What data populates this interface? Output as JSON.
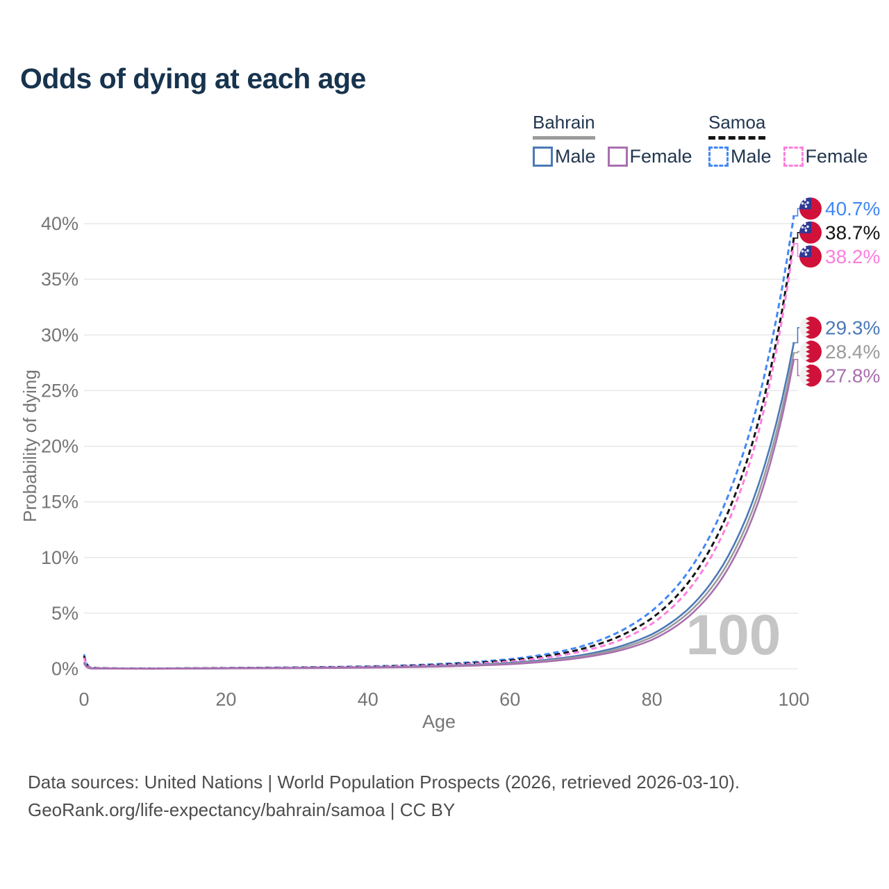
{
  "title": "Odds of dying at each age",
  "legend": {
    "bahrain": {
      "label": "Bahrain",
      "male_label": "Male",
      "female_label": "Female",
      "line_color": "#9b9b9b",
      "male_color": "#4b79b7",
      "female_color": "#a96fae",
      "style": "solid"
    },
    "samoa": {
      "label": "Samoa",
      "male_label": "Male",
      "female_label": "Female",
      "line_color": "#141414",
      "male_color": "#4287f5",
      "female_color": "#fc7fdd",
      "style": "dashed"
    }
  },
  "chart_data": {
    "type": "line",
    "xlabel": "Age",
    "ylabel": "Probability of dying",
    "x_ticks": [
      0,
      20,
      40,
      60,
      80,
      100
    ],
    "y_ticks": [
      0,
      5,
      10,
      15,
      20,
      25,
      30,
      35,
      40
    ],
    "xlim": [
      0,
      100
    ],
    "ylim": [
      0,
      42.5
    ],
    "grid": true,
    "watermark": "100",
    "ages": [
      0,
      1,
      5,
      10,
      15,
      20,
      25,
      30,
      35,
      40,
      45,
      50,
      55,
      60,
      65,
      70,
      75,
      80,
      85,
      90,
      95,
      100
    ],
    "series": [
      {
        "id": "samoa-male",
        "country": "Samoa",
        "sex": "Male",
        "color": "#4287f5",
        "dashed": true,
        "flag": "samoa",
        "end_label": "40.7%",
        "end_value": 40.7,
        "values": [
          1.3,
          0.09,
          0.04,
          0.03,
          0.05,
          0.08,
          0.1,
          0.13,
          0.17,
          0.22,
          0.3,
          0.43,
          0.61,
          0.87,
          1.3,
          2.0,
          3.2,
          5.2,
          8.6,
          14.4,
          24.1,
          40.7
        ]
      },
      {
        "id": "samoa-total",
        "country": "Samoa",
        "sex": "Both",
        "color": "#141414",
        "dashed": true,
        "flag": "samoa",
        "end_label": "38.7%",
        "end_value": 38.7,
        "values": [
          1.15,
          0.08,
          0.035,
          0.027,
          0.045,
          0.07,
          0.09,
          0.11,
          0.15,
          0.19,
          0.26,
          0.37,
          0.53,
          0.76,
          1.13,
          1.76,
          2.8,
          4.55,
          7.65,
          13.0,
          22.2,
          38.7
        ]
      },
      {
        "id": "samoa-female",
        "country": "Samoa",
        "sex": "Female",
        "color": "#fc7fdd",
        "dashed": true,
        "flag": "samoa",
        "end_label": "38.2%",
        "end_value": 38.2,
        "values": [
          1.0,
          0.07,
          0.03,
          0.024,
          0.04,
          0.06,
          0.08,
          0.1,
          0.13,
          0.17,
          0.23,
          0.32,
          0.46,
          0.66,
          1.0,
          1.55,
          2.45,
          4.05,
          6.95,
          12.1,
          21.2,
          38.2
        ]
      },
      {
        "id": "bahrain-male",
        "country": "Bahrain",
        "sex": "Male",
        "color": "#4b79b7",
        "dashed": false,
        "flag": "bahrain",
        "end_label": "29.3%",
        "end_value": 29.3,
        "values": [
          0.6,
          0.04,
          0.02,
          0.016,
          0.03,
          0.05,
          0.065,
          0.08,
          0.1,
          0.135,
          0.18,
          0.26,
          0.37,
          0.54,
          0.8,
          1.22,
          1.92,
          3.1,
          5.3,
          9.3,
          16.5,
          29.3
        ]
      },
      {
        "id": "bahrain-total",
        "country": "Bahrain",
        "sex": "Both",
        "color": "#9b9b9b",
        "dashed": false,
        "flag": "bahrain",
        "end_label": "28.4%",
        "end_value": 28.4,
        "values": [
          0.55,
          0.035,
          0.018,
          0.014,
          0.027,
          0.045,
          0.057,
          0.072,
          0.092,
          0.12,
          0.16,
          0.23,
          0.33,
          0.48,
          0.72,
          1.1,
          1.74,
          2.85,
          4.95,
          8.75,
          15.7,
          28.4
        ]
      },
      {
        "id": "bahrain-female",
        "country": "Bahrain",
        "sex": "Female",
        "color": "#a96fae",
        "dashed": false,
        "flag": "bahrain",
        "end_label": "27.8%",
        "end_value": 27.8,
        "values": [
          0.5,
          0.03,
          0.016,
          0.012,
          0.024,
          0.04,
          0.05,
          0.064,
          0.082,
          0.107,
          0.145,
          0.2,
          0.29,
          0.42,
          0.64,
          0.99,
          1.57,
          2.6,
          4.6,
          8.25,
          15.0,
          27.8
        ]
      }
    ]
  },
  "footer": {
    "line1": "Data sources: United Nations | World Population Prospects (2026, retrieved 2026-03-10).",
    "line2": "GeoRank.org/life-expectancy/bahrain/samoa | CC BY"
  }
}
